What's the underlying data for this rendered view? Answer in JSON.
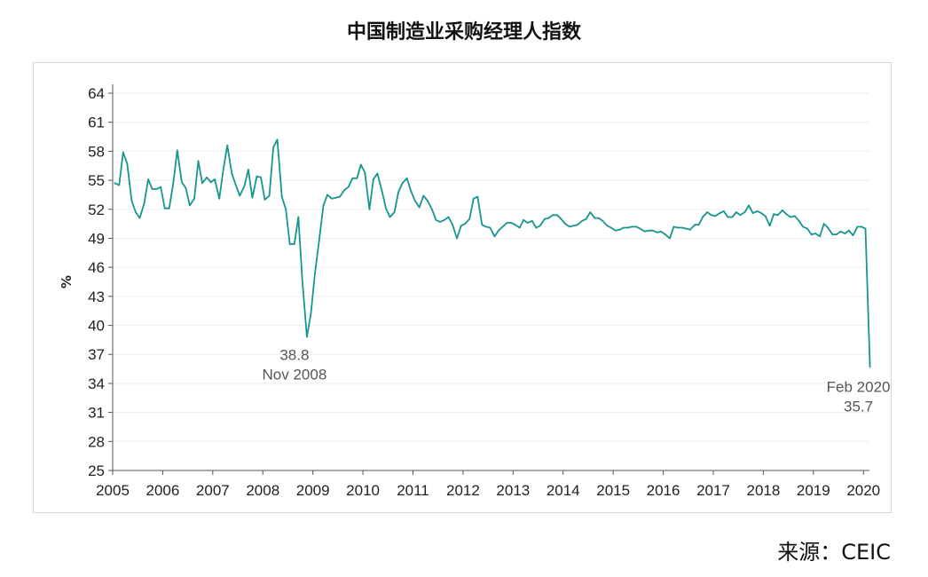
{
  "title": "中国制造业采购经理人指数",
  "source": "来源：CEIC",
  "colors": {
    "line": "#17958f",
    "axis": "#555555",
    "grid": "#eeeeee"
  },
  "chart_data": {
    "type": "line",
    "title": "中国制造业采购经理人指数",
    "ylabel": "%",
    "xlabel": "",
    "ylim": [
      25,
      64
    ],
    "yticks": [
      25,
      28,
      31,
      34,
      37,
      40,
      43,
      46,
      49,
      52,
      55,
      58,
      61,
      64
    ],
    "xlim": [
      2005.0,
      2020.12
    ],
    "xticks": [
      2005,
      2006,
      2007,
      2008,
      2009,
      2010,
      2011,
      2012,
      2013,
      2014,
      2015,
      2016,
      2017,
      2018,
      2019,
      2020
    ],
    "grid": true,
    "legend": "none",
    "series": [
      {
        "x": [
          2005.04,
          2005.13,
          2005.21,
          2005.29,
          2005.38,
          2005.46,
          2005.54,
          2005.63,
          2005.71,
          2005.79,
          2005.88,
          2005.96,
          2006.04,
          2006.13,
          2006.21,
          2006.29,
          2006.38,
          2006.46,
          2006.54,
          2006.63,
          2006.71,
          2006.79,
          2006.88,
          2006.96,
          2007.04,
          2007.13,
          2007.21,
          2007.29,
          2007.38,
          2007.46,
          2007.54,
          2007.63,
          2007.71,
          2007.79,
          2007.88,
          2007.96,
          2008.04,
          2008.13,
          2008.21,
          2008.29,
          2008.38,
          2008.46,
          2008.54,
          2008.63,
          2008.71,
          2008.79,
          2008.88,
          2008.96,
          2009.04,
          2009.13,
          2009.21,
          2009.29,
          2009.38,
          2009.46,
          2009.54,
          2009.63,
          2009.71,
          2009.79,
          2009.88,
          2009.96,
          2010.04,
          2010.13,
          2010.21,
          2010.29,
          2010.38,
          2010.46,
          2010.54,
          2010.63,
          2010.71,
          2010.79,
          2010.88,
          2010.96,
          2011.04,
          2011.13,
          2011.21,
          2011.29,
          2011.38,
          2011.46,
          2011.54,
          2011.63,
          2011.71,
          2011.79,
          2011.88,
          2011.96,
          2012.04,
          2012.13,
          2012.21,
          2012.29,
          2012.38,
          2012.46,
          2012.54,
          2012.63,
          2012.71,
          2012.79,
          2012.88,
          2012.96,
          2013.04,
          2013.13,
          2013.21,
          2013.29,
          2013.38,
          2013.46,
          2013.54,
          2013.63,
          2013.71,
          2013.79,
          2013.88,
          2013.96,
          2014.04,
          2014.13,
          2014.21,
          2014.29,
          2014.38,
          2014.46,
          2014.54,
          2014.63,
          2014.71,
          2014.79,
          2014.88,
          2014.96,
          2015.04,
          2015.13,
          2015.21,
          2015.29,
          2015.38,
          2015.46,
          2015.54,
          2015.63,
          2015.71,
          2015.79,
          2015.88,
          2015.96,
          2016.04,
          2016.13,
          2016.21,
          2016.29,
          2016.38,
          2016.46,
          2016.54,
          2016.63,
          2016.71,
          2016.79,
          2016.88,
          2016.96,
          2017.04,
          2017.13,
          2017.21,
          2017.29,
          2017.38,
          2017.46,
          2017.54,
          2017.63,
          2017.71,
          2017.79,
          2017.88,
          2017.96,
          2018.04,
          2018.13,
          2018.21,
          2018.29,
          2018.38,
          2018.46,
          2018.54,
          2018.63,
          2018.71,
          2018.79,
          2018.88,
          2018.96,
          2019.04,
          2019.13,
          2019.21,
          2019.29,
          2019.38,
          2019.46,
          2019.54,
          2019.63,
          2019.71,
          2019.79,
          2019.88,
          2019.96,
          2020.04,
          2020.13
        ],
        "y": [
          54.7,
          54.5,
          57.9,
          56.7,
          52.9,
          51.7,
          51.1,
          52.6,
          55.1,
          54.1,
          54.1,
          54.3,
          52.1,
          52.1,
          54.7,
          58.1,
          54.8,
          54.2,
          52.4,
          53.1,
          57.0,
          54.7,
          55.3,
          54.8,
          55.1,
          53.1,
          56.1,
          58.6,
          55.7,
          54.5,
          53.4,
          54.4,
          56.1,
          53.2,
          55.4,
          55.3,
          53.0,
          53.4,
          58.4,
          59.2,
          53.3,
          52.0,
          48.4,
          48.4,
          51.2,
          44.6,
          38.8,
          41.2,
          45.3,
          49.0,
          52.4,
          53.5,
          53.1,
          53.2,
          53.3,
          54.0,
          54.3,
          55.2,
          55.2,
          56.6,
          55.8,
          52.0,
          55.1,
          55.7,
          53.9,
          52.1,
          51.2,
          51.7,
          53.8,
          54.7,
          55.2,
          53.9,
          52.9,
          52.2,
          53.4,
          52.9,
          52.0,
          50.9,
          50.7,
          50.9,
          51.2,
          50.4,
          49.0,
          50.3,
          50.5,
          51.0,
          53.1,
          53.3,
          50.4,
          50.2,
          50.1,
          49.2,
          49.8,
          50.2,
          50.6,
          50.6,
          50.4,
          50.1,
          50.9,
          50.6,
          50.8,
          50.1,
          50.3,
          51.0,
          51.1,
          51.4,
          51.4,
          51.0,
          50.5,
          50.2,
          50.3,
          50.4,
          50.8,
          51.0,
          51.7,
          51.1,
          51.1,
          50.8,
          50.3,
          50.1,
          49.8,
          49.9,
          50.1,
          50.1,
          50.2,
          50.2,
          50.0,
          49.7,
          49.8,
          49.8,
          49.6,
          49.7,
          49.4,
          49.0,
          50.2,
          50.1,
          50.1,
          50.0,
          49.9,
          50.4,
          50.4,
          51.2,
          51.7,
          51.4,
          51.3,
          51.6,
          51.8,
          51.2,
          51.2,
          51.7,
          51.4,
          51.7,
          52.4,
          51.6,
          51.8,
          51.6,
          51.3,
          50.3,
          51.5,
          51.4,
          51.9,
          51.5,
          51.2,
          51.3,
          50.8,
          50.2,
          50.0,
          49.4,
          49.5,
          49.2,
          50.5,
          50.1,
          49.4,
          49.4,
          49.7,
          49.5,
          49.8,
          49.3,
          50.2,
          50.2,
          50.0,
          35.7
        ]
      }
    ],
    "annotations": [
      {
        "x": 2008.88,
        "y": 38.8,
        "value": "38.8",
        "date": "Nov 2008"
      },
      {
        "x": 2020.13,
        "y": 35.7,
        "date": "Feb 2020",
        "value": "35.7"
      }
    ]
  }
}
